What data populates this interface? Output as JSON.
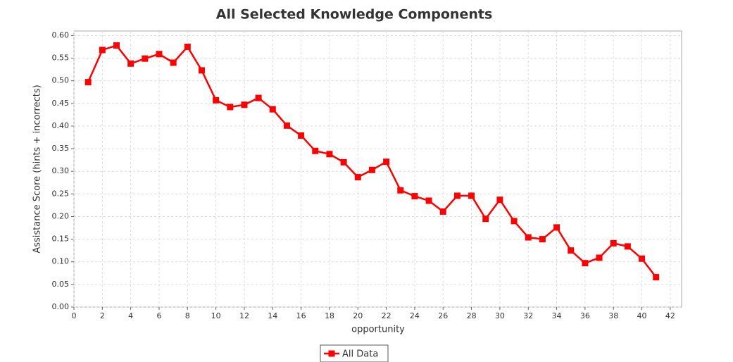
{
  "chart_data": {
    "type": "line",
    "title": "All Selected Knowledge Components",
    "x_label": "opportunity",
    "y_label": "Assistance Score (hints + incorrects)",
    "x": [
      1,
      2,
      3,
      4,
      5,
      6,
      7,
      8,
      9,
      10,
      11,
      12,
      13,
      14,
      15,
      16,
      17,
      18,
      19,
      20,
      21,
      22,
      23,
      24,
      25,
      26,
      27,
      28,
      29,
      30,
      31,
      32,
      33,
      34,
      35,
      36,
      37,
      38,
      39,
      40,
      41
    ],
    "series": [
      {
        "name": "All Data",
        "color": "#ff0000",
        "values": [
          0.497,
          0.568,
          0.578,
          0.538,
          0.549,
          0.559,
          0.54,
          0.575,
          0.523,
          0.457,
          0.442,
          0.447,
          0.462,
          0.437,
          0.401,
          0.379,
          0.345,
          0.338,
          0.32,
          0.287,
          0.303,
          0.321,
          0.258,
          0.245,
          0.235,
          0.211,
          0.246,
          0.246,
          0.195,
          0.237,
          0.19,
          0.154,
          0.15,
          0.176,
          0.125,
          0.097,
          0.109,
          0.141,
          0.134,
          0.107,
          0.066
        ]
      }
    ],
    "xlim": [
      0,
      42.8
    ],
    "xticks": [
      0,
      2,
      4,
      6,
      8,
      10,
      12,
      14,
      16,
      18,
      20,
      22,
      24,
      26,
      28,
      30,
      32,
      34,
      36,
      38,
      40,
      42
    ],
    "ylim": [
      0,
      0.61
    ],
    "yticks": [
      {
        "value": 0,
        "label": "0.00"
      },
      {
        "value": 0.05,
        "label": "0.05"
      },
      {
        "value": 0.1,
        "label": "0.10"
      },
      {
        "value": 0.15,
        "label": "0.15"
      },
      {
        "value": 0.2,
        "label": "0.20"
      },
      {
        "value": 0.25,
        "label": "0.25"
      },
      {
        "value": 0.3,
        "label": "0.30"
      },
      {
        "value": 0.35,
        "label": "0.35"
      },
      {
        "value": 0.4,
        "label": "0.40"
      },
      {
        "value": 0.45,
        "label": "0.45"
      },
      {
        "value": 0.5,
        "label": "0.50"
      },
      {
        "value": 0.55,
        "label": "0.55"
      },
      {
        "value": 0.6,
        "label": "0.60"
      }
    ],
    "grid": true
  }
}
